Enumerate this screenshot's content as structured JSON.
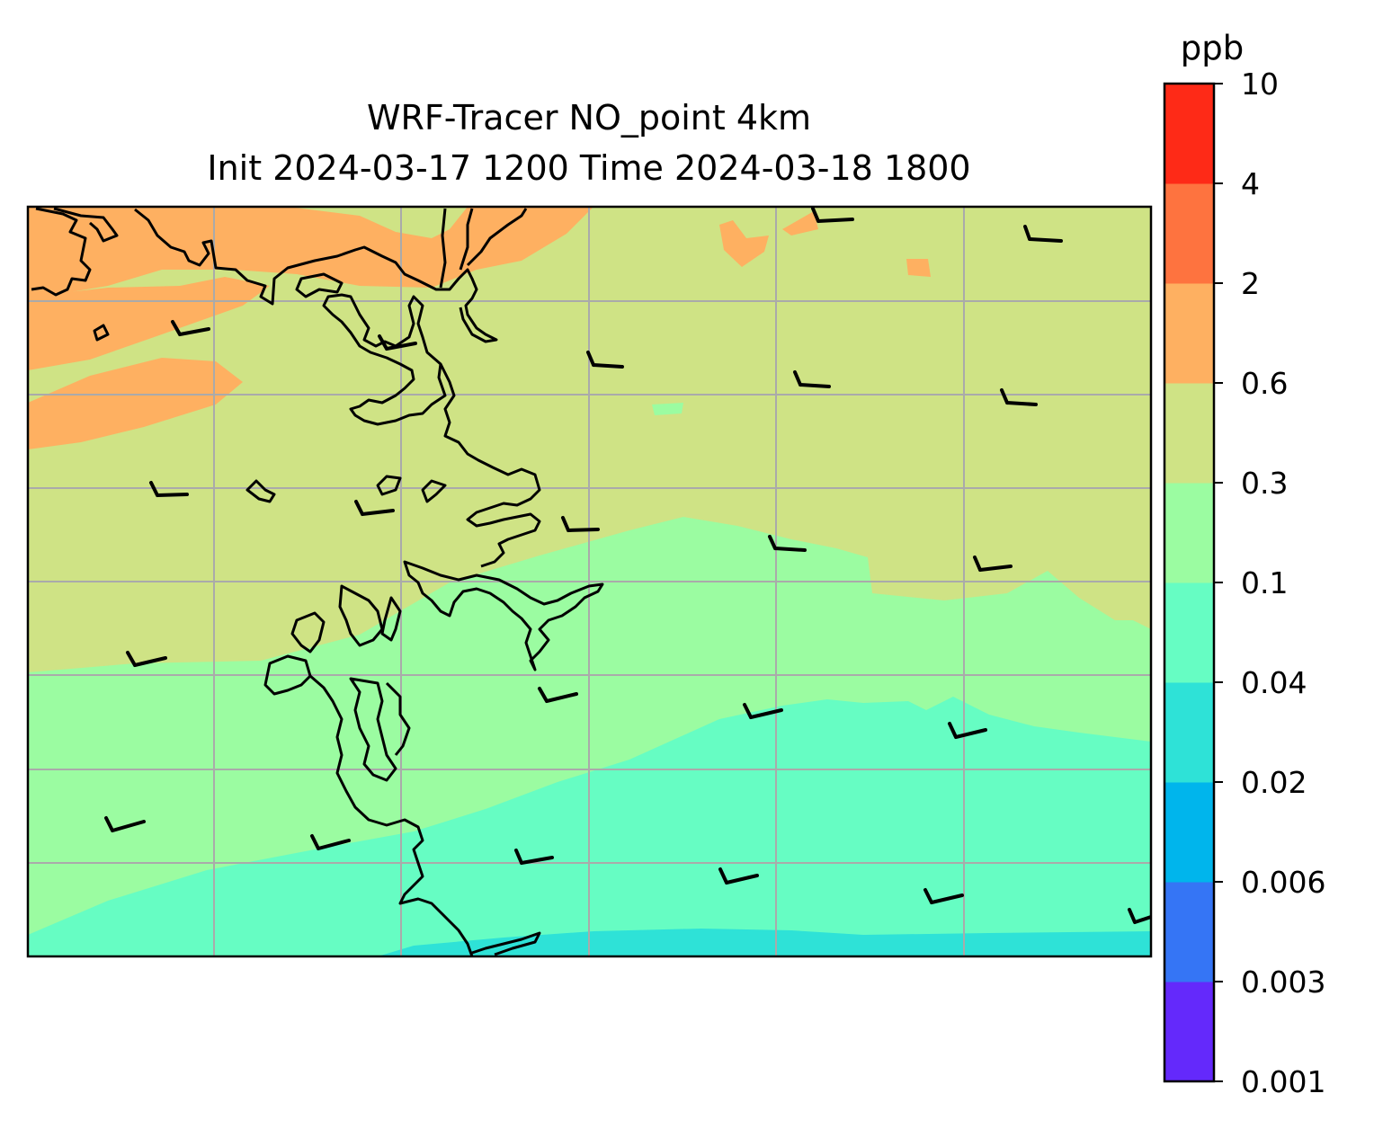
{
  "title": {
    "line1": "WRF-Tracer NO_point 4km",
    "line2": "Init 2024-03-17 1200 Time 2024-03-18 1800"
  },
  "colorbar": {
    "unit": "ppb",
    "levels": [
      "0.001",
      "0.003",
      "0.006",
      "0.02",
      "0.04",
      "0.1",
      "0.3",
      "0.6",
      "2",
      "4",
      "10"
    ],
    "colors": [
      "#6429fb",
      "#3575f5",
      "#00b5ec",
      "#2ee2d7",
      "#66fdc3",
      "#9bfca1",
      "#cfe385",
      "#feb061",
      "#fe733f",
      "#fe2a17"
    ]
  },
  "map": {
    "background_colors": {
      "high": "#feb061",
      "moderate": "#cfe385",
      "low": "#9bfca1",
      "lower": "#66fdc3",
      "lowest": "#2ee2d7"
    },
    "gridline_color": "#aaaaaa",
    "coastline_color": "#000000",
    "wind_barbs_shown": true
  }
}
